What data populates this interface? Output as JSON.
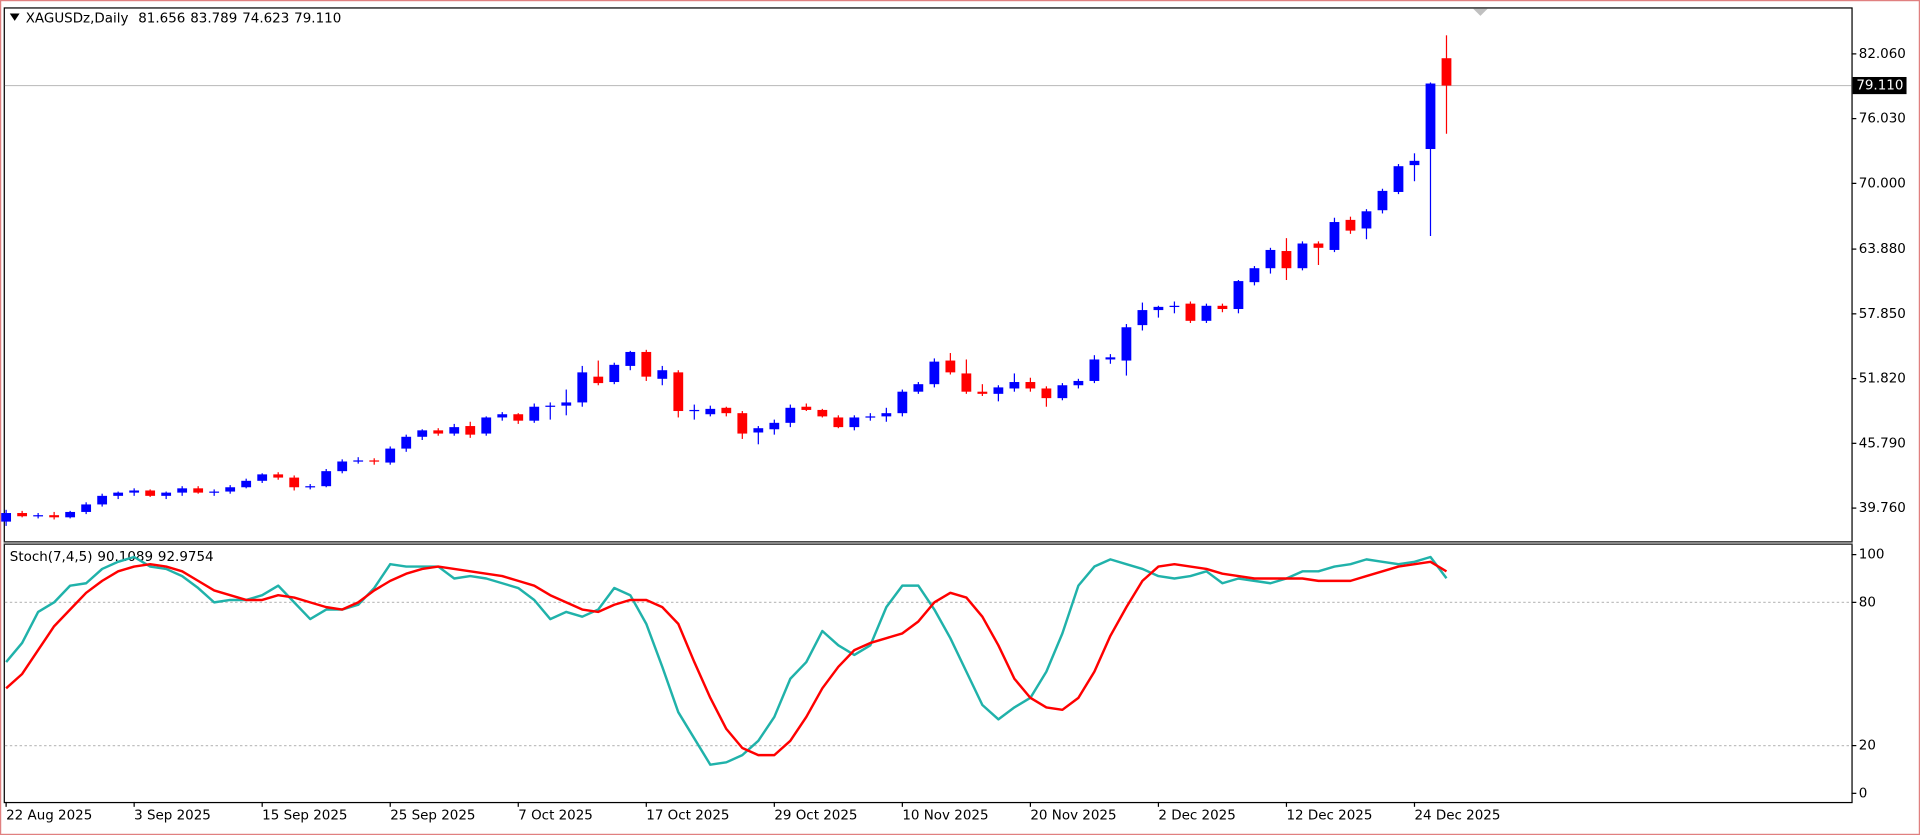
{
  "chart_data": [
    {
      "type": "candlestick",
      "title": "XAGUSDz,Daily",
      "header_values": [
        "81.656",
        "83.789",
        "74.623",
        "79.110"
      ],
      "categories": [
        "22 Aug 2025",
        null,
        null,
        null,
        null,
        null,
        null,
        null,
        "3 Sep 2025",
        null,
        null,
        null,
        null,
        null,
        null,
        null,
        "15 Sep 2025",
        null,
        null,
        null,
        null,
        null,
        null,
        null,
        "25 Sep 2025",
        null,
        null,
        null,
        null,
        null,
        null,
        null,
        "7 Oct 2025",
        null,
        null,
        null,
        null,
        null,
        null,
        null,
        "17 Oct 2025",
        null,
        null,
        null,
        null,
        null,
        null,
        null,
        "29 Oct 2025",
        null,
        null,
        null,
        null,
        null,
        null,
        null,
        "10 Nov 2025",
        null,
        null,
        null,
        null,
        null,
        null,
        null,
        "20 Nov 2025",
        null,
        null,
        null,
        null,
        null,
        null,
        null,
        "2 Dec 2025",
        null,
        null,
        null,
        null,
        null,
        null,
        null,
        "12 Dec 2025",
        null,
        null,
        null,
        null,
        null,
        null,
        null,
        "24 Dec 2025",
        null,
        null
      ],
      "open": [
        38.5,
        39.3,
        39.0,
        39.1,
        38.9,
        39.4,
        40.1,
        40.9,
        41.2,
        41.4,
        40.9,
        41.2,
        41.6,
        41.2,
        41.3,
        41.7,
        42.3,
        42.9,
        42.6,
        41.7,
        41.8,
        43.2,
        44.1,
        44.2,
        44.0,
        45.3,
        46.4,
        47.0,
        46.7,
        47.4,
        46.7,
        48.2,
        48.5,
        47.9,
        49.2,
        49.3,
        49.6,
        52.0,
        51.5,
        53.0,
        54.3,
        51.8,
        52.4,
        48.8,
        48.5,
        49.1,
        48.6,
        46.8,
        47.1,
        47.7,
        49.2,
        48.9,
        48.2,
        47.3,
        48.2,
        48.3,
        48.6,
        50.6,
        51.3,
        53.5,
        52.3,
        50.6,
        50.4,
        50.9,
        51.5,
        50.9,
        50.0,
        51.2,
        51.6,
        53.6,
        53.5,
        56.8,
        58.2,
        58.5,
        58.8,
        57.2,
        58.6,
        58.3,
        60.8,
        62.1,
        63.7,
        62.1,
        64.4,
        63.8,
        66.6,
        65.8,
        67.5,
        69.2,
        71.7,
        73.2,
        81.656
      ],
      "high": [
        39.6,
        39.5,
        39.3,
        39.4,
        39.5,
        40.3,
        41.1,
        41.3,
        41.6,
        41.5,
        41.3,
        41.8,
        41.8,
        41.5,
        41.9,
        42.5,
        43.0,
        43.1,
        42.8,
        42.0,
        43.4,
        44.3,
        44.5,
        44.4,
        45.5,
        46.6,
        47.1,
        47.2,
        47.6,
        47.8,
        48.3,
        48.7,
        48.6,
        49.5,
        49.6,
        50.8,
        53.0,
        53.5,
        53.3,
        54.4,
        54.5,
        53.0,
        52.6,
        49.4,
        49.3,
        49.2,
        48.8,
        47.4,
        48.0,
        49.4,
        49.5,
        49.0,
        48.4,
        48.4,
        48.6,
        49.1,
        50.8,
        51.5,
        53.7,
        54.2,
        53.6,
        51.3,
        51.2,
        52.3,
        51.9,
        51.1,
        51.4,
        51.8,
        54.0,
        54.1,
        56.9,
        58.9,
        58.6,
        59.0,
        59.0,
        58.8,
        58.8,
        61.0,
        62.3,
        64.0,
        64.9,
        64.6,
        64.6,
        66.8,
        66.9,
        67.6,
        69.5,
        71.8,
        72.8,
        79.4,
        83.789
      ],
      "low": [
        38.1,
        38.9,
        38.8,
        38.7,
        38.8,
        39.2,
        39.9,
        40.6,
        40.9,
        40.8,
        40.6,
        40.9,
        41.1,
        40.9,
        41.1,
        41.6,
        42.1,
        42.4,
        41.4,
        41.5,
        41.7,
        43.0,
        43.9,
        43.8,
        43.8,
        45.0,
        46.1,
        46.5,
        46.5,
        46.3,
        46.5,
        47.9,
        47.6,
        47.7,
        48.0,
        48.4,
        49.2,
        51.2,
        51.3,
        52.6,
        51.6,
        51.2,
        48.2,
        48.0,
        48.3,
        48.3,
        46.2,
        45.7,
        46.6,
        47.3,
        48.8,
        48.2,
        47.2,
        47.0,
        47.9,
        47.8,
        48.3,
        50.4,
        51.0,
        52.2,
        50.4,
        50.2,
        49.7,
        50.6,
        50.6,
        49.2,
        49.8,
        50.9,
        51.4,
        53.2,
        52.1,
        56.3,
        57.5,
        57.9,
        57.0,
        57.0,
        58.0,
        57.9,
        60.5,
        61.6,
        61.0,
        61.9,
        62.4,
        63.6,
        65.3,
        64.8,
        67.2,
        69.0,
        70.2,
        65.1,
        74.623
      ],
      "close": [
        39.3,
        39.0,
        39.1,
        38.9,
        39.4,
        40.1,
        40.9,
        41.2,
        41.4,
        40.9,
        41.2,
        41.6,
        41.2,
        41.3,
        41.7,
        42.3,
        42.9,
        42.6,
        41.7,
        41.8,
        43.2,
        44.1,
        44.2,
        44.1,
        45.3,
        46.4,
        47.0,
        46.7,
        47.3,
        46.6,
        48.2,
        48.5,
        47.9,
        49.2,
        49.3,
        49.6,
        52.4,
        51.4,
        53.1,
        54.3,
        52.0,
        52.6,
        48.8,
        48.9,
        49.0,
        48.6,
        46.7,
        47.2,
        47.7,
        49.1,
        48.9,
        48.3,
        47.3,
        48.2,
        48.3,
        48.6,
        50.6,
        51.3,
        53.4,
        52.4,
        50.6,
        50.4,
        51.0,
        51.5,
        50.9,
        50.0,
        51.2,
        51.6,
        53.6,
        53.8,
        56.6,
        58.2,
        58.5,
        58.6,
        57.2,
        58.6,
        58.3,
        60.9,
        62.1,
        63.8,
        62.1,
        64.4,
        64.0,
        66.4,
        65.6,
        67.4,
        69.3,
        71.6,
        72.1,
        79.3,
        79.11
      ],
      "up_color": "#0000ff",
      "down_color": "#ff0000",
      "current_price": {
        "value": 79.11,
        "label": "79.110"
      },
      "ylim": [
        36.68,
        86.28
      ],
      "yticks": [
        {
          "value": 39.76,
          "label": "39.760"
        },
        {
          "value": 45.79,
          "label": "45.790"
        },
        {
          "value": 51.82,
          "label": "51.820"
        },
        {
          "value": 57.85,
          "label": "57.850"
        },
        {
          "value": 63.88,
          "label": "63.880"
        },
        {
          "value": 70.0,
          "label": "70.000"
        },
        {
          "value": 76.03,
          "label": "76.030"
        },
        {
          "value": 82.06,
          "label": "82.060"
        }
      ]
    },
    {
      "type": "line",
      "title": "Stoch(7,4,5)",
      "series": [
        {
          "name": "%K",
          "color": "#20b2aa",
          "values": [
            55,
            63,
            76,
            80,
            87,
            88,
            94,
            97,
            99,
            95,
            94,
            91,
            86,
            80,
            81,
            81,
            83,
            87,
            80,
            73,
            77,
            77,
            79,
            86,
            96,
            95,
            95,
            95,
            90,
            91,
            90,
            88,
            86,
            81,
            73,
            76,
            74,
            77,
            86,
            83,
            71,
            53,
            34,
            23,
            12,
            13,
            16,
            22,
            32,
            48,
            55,
            68,
            62,
            58,
            62,
            78,
            87,
            87,
            77,
            65,
            51,
            37,
            31,
            36,
            40,
            51,
            67,
            87,
            95,
            98,
            96,
            94,
            91,
            90,
            91,
            93,
            88,
            90,
            89,
            88,
            90,
            93,
            93,
            95,
            96,
            98,
            97,
            96,
            97,
            99,
            90.1089
          ]
        },
        {
          "name": "%D",
          "color": "#ff0000",
          "values": [
            44,
            50,
            60,
            70,
            77,
            84,
            89,
            93,
            95,
            96,
            95,
            93,
            89,
            85,
            83,
            81,
            81,
            83,
            82,
            80,
            78,
            77,
            80,
            85,
            89,
            92,
            94,
            95,
            94,
            93,
            92,
            91,
            89,
            87,
            83,
            80,
            77,
            76,
            79,
            81,
            81,
            78,
            71,
            55,
            40,
            27,
            19,
            16,
            16,
            22,
            32,
            44,
            53,
            60,
            63,
            65,
            67,
            72,
            80,
            84,
            82,
            74,
            62,
            48,
            40,
            36,
            35,
            40,
            51,
            66,
            78,
            89,
            95,
            96,
            95,
            94,
            92,
            91,
            90,
            90,
            90,
            90,
            89,
            89,
            89,
            91,
            93,
            95,
            96,
            97,
            92.9754
          ]
        }
      ],
      "levels": [
        20,
        80
      ],
      "ylim": [
        -3.6,
        104.1
      ],
      "yticks": [
        0,
        20,
        80,
        100
      ]
    }
  ]
}
